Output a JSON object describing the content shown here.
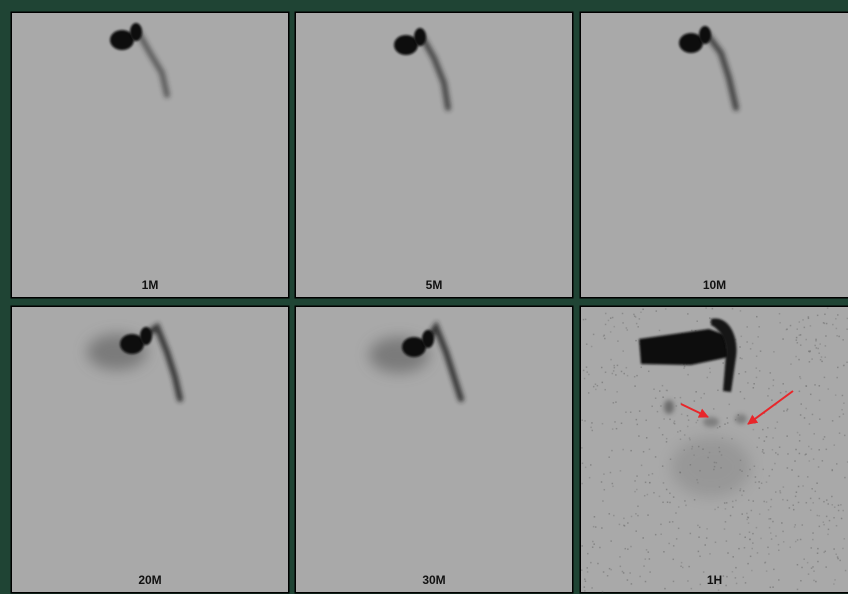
{
  "panels": [
    {
      "label": "1M"
    },
    {
      "label": "5M"
    },
    {
      "label": "10M"
    },
    {
      "label": "20M"
    },
    {
      "label": "30M"
    },
    {
      "label": "1H"
    }
  ]
}
